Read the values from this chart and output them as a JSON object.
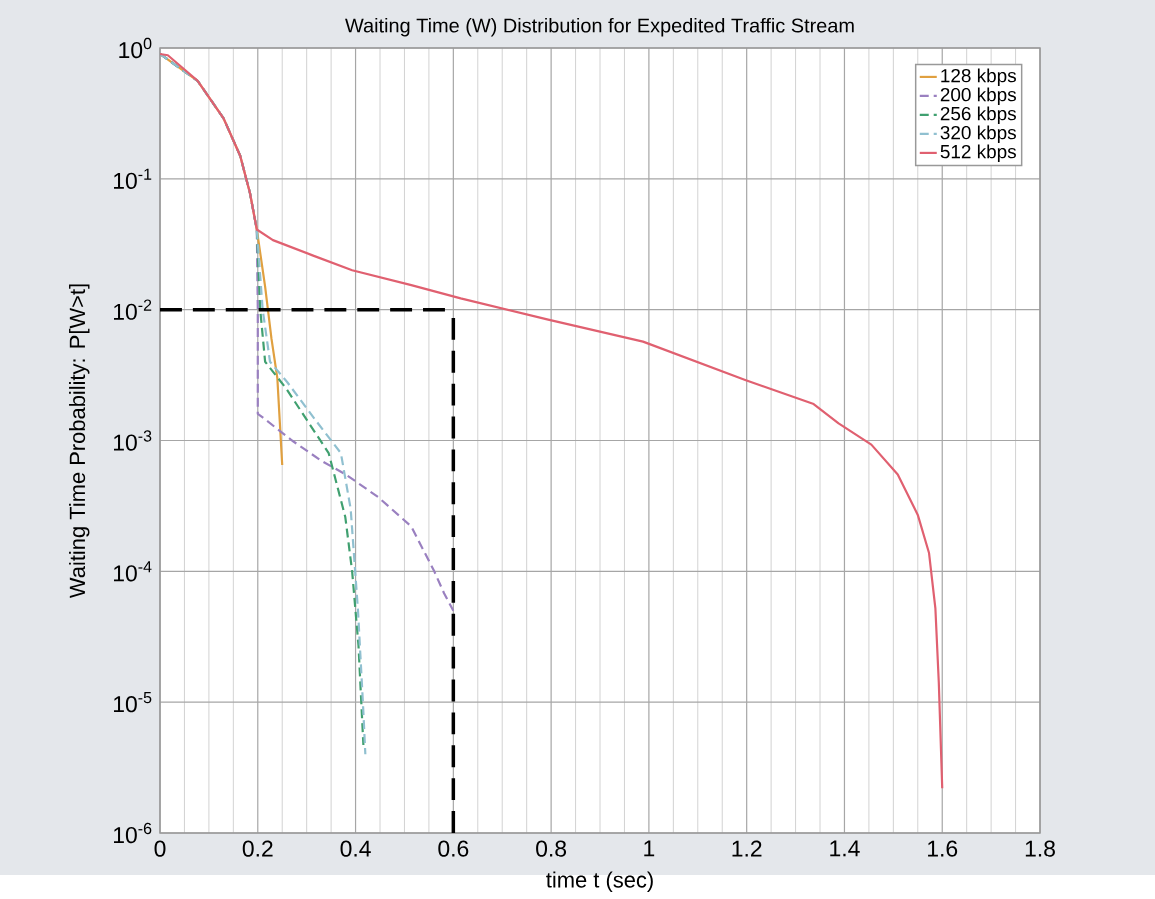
{
  "chart_data": {
    "type": "line",
    "title": "Waiting Time (W) Distribution for Expedited Traffic Stream",
    "xlabel": "time t (sec)",
    "ylabel": "Waiting Time  Probability: P[W>t]",
    "log": "y",
    "grid": true,
    "legend": "top right",
    "marker": "none",
    "xlim": [
      0,
      1.8
    ],
    "xticks": [
      0,
      0.2,
      0.4,
      0.6,
      0.8,
      1,
      1.2,
      1.4,
      1.6,
      1.8
    ],
    "ylim": [
      1e-06,
      1
    ],
    "yticks": [
      {
        "value": 1e-06,
        "label": "10$^{-6}$"
      },
      {
        "value": 1e-05,
        "label": "10$^{-5}$"
      },
      {
        "value": 0.0001,
        "label": "10$^{-4}$"
      },
      {
        "value": 0.001,
        "label": "10$^{-3}$"
      },
      {
        "value": 0.01,
        "label": "10$^{-2}$"
      },
      {
        "value": 0.1,
        "label": "10$^{-1}$"
      },
      {
        "value": 1,
        "label": "10$^{0}$"
      }
    ],
    "ref_lines": [
      {
        "axis": "y",
        "value": 0.01,
        "color": "#000000",
        "line_style": "dashed"
      },
      {
        "axis": "x",
        "value": 0.6,
        "color": "#000000",
        "line_style": "dashed"
      }
    ],
    "series": [
      {
        "name": "128 kbps",
        "color": "#e0a040",
        "line_style": "solid",
        "x": [
          0,
          0.077,
          0.13,
          0.164,
          0.184,
          0.198,
          0.215,
          0.228,
          0.24,
          0.25
        ],
        "values": [
          0.9,
          0.56,
          0.29,
          0.15,
          0.078,
          0.041,
          0.015,
          0.006,
          0.003,
          0.00065
        ]
      },
      {
        "name": "200 kbps",
        "color": "#9a80c0",
        "line_style": "dashed",
        "x": [
          0,
          0.077,
          0.13,
          0.164,
          0.184,
          0.198,
          0.2,
          0.2,
          0.21,
          0.27,
          0.33,
          0.38,
          0.446,
          0.514,
          0.561,
          0.581,
          0.6
        ],
        "values": [
          0.9,
          0.56,
          0.29,
          0.15,
          0.078,
          0.041,
          0.01,
          0.0016,
          0.0015,
          0.001,
          0.0007,
          0.00055,
          0.00037,
          0.00022,
          0.0001,
          6.8e-05,
          5e-05
        ]
      },
      {
        "name": "256 kbps",
        "color": "#40a070",
        "line_style": "dashed",
        "x": [
          0,
          0.077,
          0.13,
          0.164,
          0.184,
          0.198,
          0.205,
          0.215,
          0.258,
          0.345,
          0.379,
          0.393,
          0.406,
          0.416
        ],
        "values": [
          0.9,
          0.56,
          0.29,
          0.15,
          0.078,
          0.041,
          0.01,
          0.004,
          0.0025,
          0.0008,
          0.00026,
          0.0001,
          2.7e-05,
          4.7e-06
        ]
      },
      {
        "name": "320 kbps",
        "color": "#90c0d0",
        "line_style": "dashed",
        "x": [
          0,
          0.077,
          0.13,
          0.164,
          0.184,
          0.198,
          0.21,
          0.225,
          0.26,
          0.32,
          0.37,
          0.39,
          0.405,
          0.415,
          0.42
        ],
        "values": [
          0.9,
          0.56,
          0.29,
          0.15,
          0.078,
          0.041,
          0.01,
          0.004,
          0.0028,
          0.0014,
          0.0008,
          0.0003,
          5e-05,
          1e-05,
          4e-06
        ]
      },
      {
        "name": "512 kbps",
        "color": "#e06070",
        "line_style": "solid",
        "x": [
          0,
          0.016,
          0.077,
          0.13,
          0.164,
          0.184,
          0.198,
          0.231,
          0.312,
          0.393,
          0.514,
          0.615,
          0.794,
          0.988,
          1.197,
          1.337,
          1.388,
          1.455,
          1.509,
          1.55,
          1.573,
          1.586,
          1.593,
          1.6
        ],
        "values": [
          0.9,
          0.88,
          0.56,
          0.29,
          0.15,
          0.078,
          0.041,
          0.034,
          0.026,
          0.02,
          0.0154,
          0.0122,
          0.0084,
          0.0057,
          0.0029,
          0.0019,
          0.00135,
          0.00093,
          0.00055,
          0.00027,
          0.000138,
          5.2e-05,
          1.4e-05,
          2.2e-06
        ]
      }
    ]
  }
}
